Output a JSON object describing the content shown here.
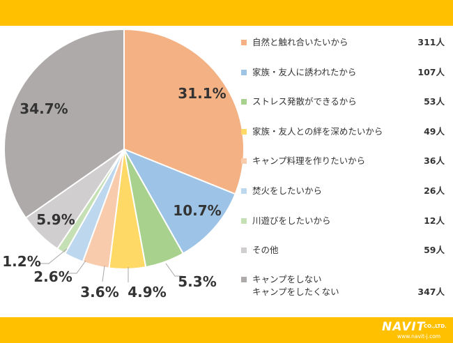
{
  "colors": {
    "bar": "#ffc000",
    "label_dark": "#333333"
  },
  "chart_data": {
    "type": "pie",
    "categories": [
      "自然と触れ合いたいから",
      "家族・友人に誘われたから",
      "ストレス発散ができるから",
      "家族・友人との絆を深めたいから",
      "キャンプ料理を作りたいから",
      "焚火をしたいから",
      "川遊びをしたいから",
      "その他",
      "キャンプをしない\nキャンプをしたくない"
    ],
    "values": [
      311,
      107,
      53,
      49,
      36,
      26,
      12,
      59,
      347
    ],
    "percent_labels": [
      "31.1%",
      "10.7%",
      "5.3%",
      "4.9%",
      "3.6%",
      "2.6%",
      "1.2%",
      "5.9%",
      "34.7%"
    ],
    "count_labels": [
      "311人",
      "107人",
      "53人",
      "49人",
      "36人",
      "26人",
      "12人",
      "59人",
      "347人"
    ],
    "colors": [
      "#f4b183",
      "#9dc3e6",
      "#a9d18e",
      "#ffd966",
      "#f8cbad",
      "#bdd7ee",
      "#c5e0b4",
      "#d0cece",
      "#aeaaaa"
    ],
    "legend_position": "right",
    "start_angle_deg": 0,
    "direction": "clockwise"
  },
  "legend": {
    "items": [
      {
        "label": "自然と触れ合いたいから",
        "count": "311人"
      },
      {
        "label": "家族・友人に誘われたから",
        "count": "107人"
      },
      {
        "label": "ストレス発散ができるから",
        "count": "53人"
      },
      {
        "label": "家族・友人との絆を深めたいから",
        "count": "49人"
      },
      {
        "label": "キャンプ料理を作りたいから",
        "count": "36人"
      },
      {
        "label": "焚火をしたいから",
        "count": "26人"
      },
      {
        "label": "川遊びをしたいから",
        "count": "12人"
      },
      {
        "label": "その他",
        "count": "59人"
      },
      {
        "label": "キャンプをしない",
        "label2": "キャンプをしたくない",
        "count": "347人"
      }
    ]
  },
  "logo": {
    "name": "NAVIT",
    "suffix": "CO.,LTD.",
    "url": "www.navit-j.com"
  }
}
